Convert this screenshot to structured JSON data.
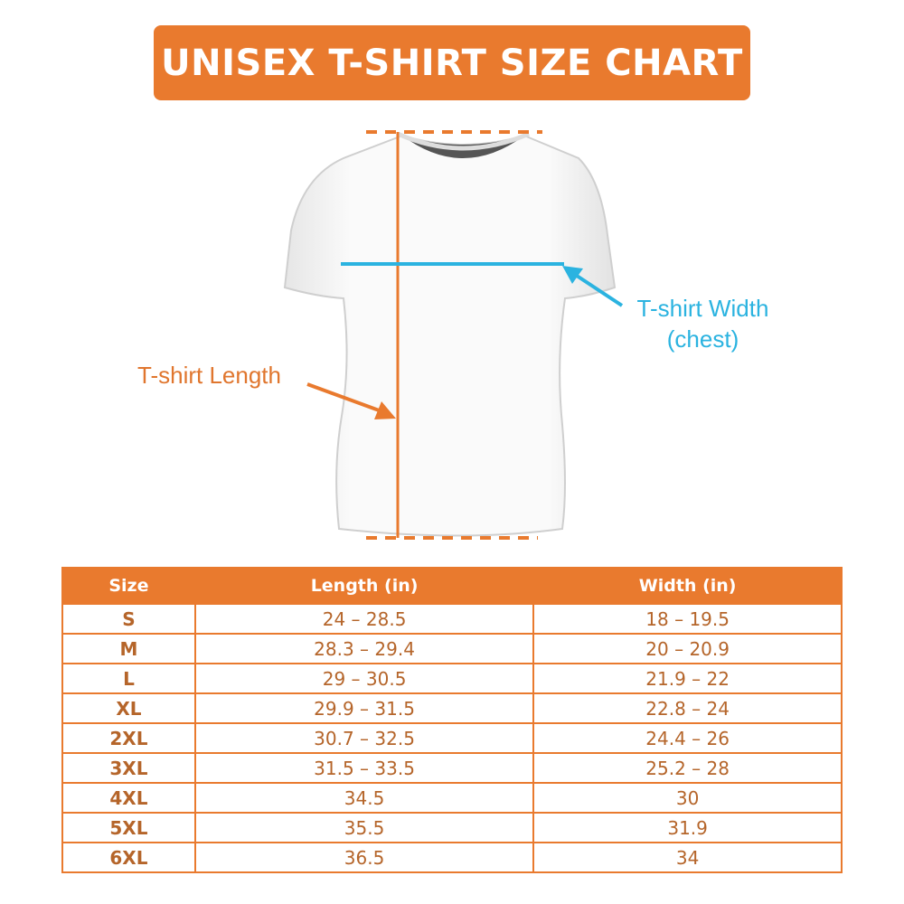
{
  "title": "UNISEX T-SHIRT SIZE CHART",
  "colors": {
    "accent": "#E97A2E",
    "width_line": "#2BB3E0",
    "table_text": "#B5652A"
  },
  "diagram": {
    "length_label": "T-shirt Length",
    "width_label_line1": "T-shirt Width",
    "width_label_line2": "(chest)"
  },
  "table": {
    "headers": [
      "Size",
      "Length (in)",
      "Width (in)"
    ],
    "rows": [
      [
        "S",
        "24 – 28.5",
        "18 – 19.5"
      ],
      [
        "M",
        "28.3 – 29.4",
        "20 – 20.9"
      ],
      [
        "L",
        "29 – 30.5",
        "21.9 – 22"
      ],
      [
        "XL",
        "29.9 – 31.5",
        "22.8 – 24"
      ],
      [
        "2XL",
        "30.7 – 32.5",
        "24.4 – 26"
      ],
      [
        "3XL",
        "31.5 – 33.5",
        "25.2 – 28"
      ],
      [
        "4XL",
        "34.5",
        "30"
      ],
      [
        "5XL",
        "35.5",
        "31.9"
      ],
      [
        "6XL",
        "36.5",
        "34"
      ]
    ]
  }
}
